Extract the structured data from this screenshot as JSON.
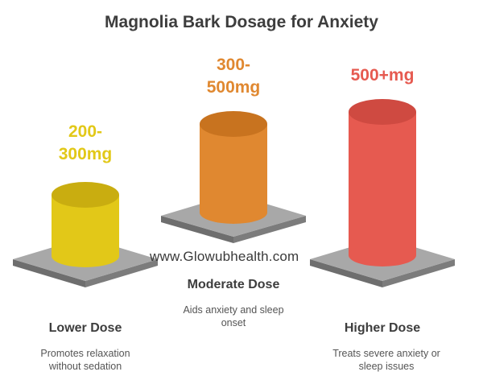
{
  "title": "Magnolia Bark Dosage for Anxiety",
  "watermark": "www.Glowubhealth.com",
  "doses": [
    {
      "value": "200-\n300mg",
      "label": "Lower Dose",
      "description": "Promotes relaxation\nwithout sedation",
      "color": "#e2c818",
      "color_dark": "#c9ad10"
    },
    {
      "value": "300-\n500mg",
      "label": "Moderate Dose",
      "description": "Aids anxiety and sleep\nonset",
      "color": "#e08830",
      "color_dark": "#c8731f"
    },
    {
      "value": "500+mg",
      "label": "Higher Dose",
      "description": "Treats severe anxiety or\nsleep issues",
      "color": "#e65a50",
      "color_dark": "#cf4a41"
    }
  ],
  "colors": {
    "platform_top": "#a8a8a8",
    "platform_side": "#6e6e6e",
    "text_dark": "#3d3d3d"
  }
}
